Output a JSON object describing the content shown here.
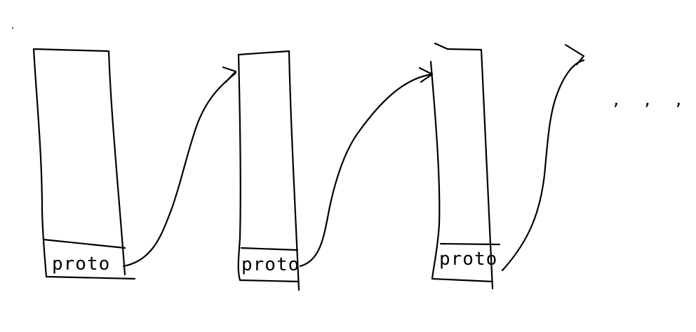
{
  "diagram": {
    "cells": [
      {
        "label": "proto"
      },
      {
        "label": "proto"
      },
      {
        "label": "proto"
      }
    ],
    "continuation": ", , ,"
  }
}
